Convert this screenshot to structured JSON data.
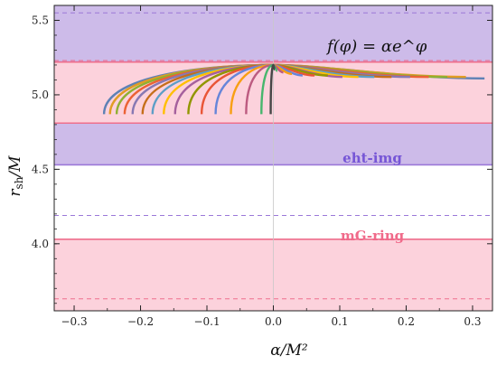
{
  "chart_data": {
    "type": "line",
    "xlabel": "α/M²",
    "ylabel": "r_sh/M",
    "xlim": [
      -0.33,
      0.33
    ],
    "ylim": [
      3.55,
      5.6
    ],
    "x_ticks": [
      -0.3,
      -0.2,
      -0.1,
      0.0,
      0.1,
      0.2,
      0.3
    ],
    "x_tick_labels": [
      "−0.3",
      "−0.2",
      "−0.1",
      "0.0",
      "0.1",
      "0.2",
      "0.3"
    ],
    "y_ticks": [
      4.0,
      4.5,
      5.0,
      5.5
    ],
    "y_tick_labels": [
      "4.0",
      "4.5",
      "5.0",
      "5.5"
    ],
    "grid": false,
    "annotations": {
      "formula": "f(φ) = αe^φ",
      "band_label_eht": "eht-img",
      "band_label_mg": "mG-ring"
    },
    "bands": [
      {
        "name": "eht-img",
        "ranges": [
          [
            4.53,
            4.81
          ],
          [
            5.22,
            5.6
          ]
        ],
        "dashed_edges": [
          4.19,
          5.55
        ],
        "color": "#cdbbe9",
        "edge_color": "#9b78d8"
      },
      {
        "name": "mG-ring",
        "ranges": [
          [
            3.55,
            4.03
          ],
          [
            4.81,
            5.22
          ]
        ],
        "dashed_edges": [
          3.63,
          5.23
        ],
        "color": "#fcd2dc",
        "edge_color": "#ee6f8d"
      }
    ],
    "series_colors": [
      "#5e81b5",
      "#e19c24",
      "#8fb032",
      "#eb6235",
      "#8778b3",
      "#c56e1a",
      "#5d9ec7",
      "#ffbf00",
      "#a5609d",
      "#929600",
      "#e95536",
      "#6685d9",
      "#f89f13",
      "#bc5b80",
      "#47b66d",
      "#464646"
    ],
    "curves_negative_alpha": [
      {
        "x_end": -0.255,
        "y_end": 4.87
      },
      {
        "x_end": -0.246,
        "y_end": 4.87
      },
      {
        "x_end": -0.236,
        "y_end": 4.87
      },
      {
        "x_end": -0.224,
        "y_end": 4.87
      },
      {
        "x_end": -0.212,
        "y_end": 4.87
      },
      {
        "x_end": -0.197,
        "y_end": 4.87
      },
      {
        "x_end": -0.182,
        "y_end": 4.87
      },
      {
        "x_end": -0.165,
        "y_end": 4.87
      },
      {
        "x_end": -0.148,
        "y_end": 4.87
      },
      {
        "x_end": -0.128,
        "y_end": 4.87
      },
      {
        "x_end": -0.108,
        "y_end": 4.87
      },
      {
        "x_end": -0.087,
        "y_end": 4.87
      },
      {
        "x_end": -0.064,
        "y_end": 4.87
      },
      {
        "x_end": -0.041,
        "y_end": 4.87
      },
      {
        "x_end": -0.018,
        "y_end": 4.87
      },
      {
        "x_end": -0.004,
        "y_end": 4.87
      }
    ],
    "curves_positive_alpha": [
      {
        "x_end": 0.318,
        "y_end": 5.11
      },
      {
        "x_end": 0.29,
        "y_end": 5.12
      },
      {
        "x_end": 0.262,
        "y_end": 5.12
      },
      {
        "x_end": 0.234,
        "y_end": 5.12
      },
      {
        "x_end": 0.206,
        "y_end": 5.12
      },
      {
        "x_end": 0.178,
        "y_end": 5.12
      },
      {
        "x_end": 0.152,
        "y_end": 5.12
      },
      {
        "x_end": 0.128,
        "y_end": 5.12
      },
      {
        "x_end": 0.104,
        "y_end": 5.12
      },
      {
        "x_end": 0.082,
        "y_end": 5.13
      },
      {
        "x_end": 0.062,
        "y_end": 5.13
      },
      {
        "x_end": 0.044,
        "y_end": 5.13
      },
      {
        "x_end": 0.028,
        "y_end": 5.14
      },
      {
        "x_end": 0.015,
        "y_end": 5.15
      },
      {
        "x_end": 0.006,
        "y_end": 5.16
      },
      {
        "x_end": 0.002,
        "y_end": 5.17
      }
    ],
    "curve_origin": {
      "x": 0.0,
      "y": 5.2
    }
  }
}
